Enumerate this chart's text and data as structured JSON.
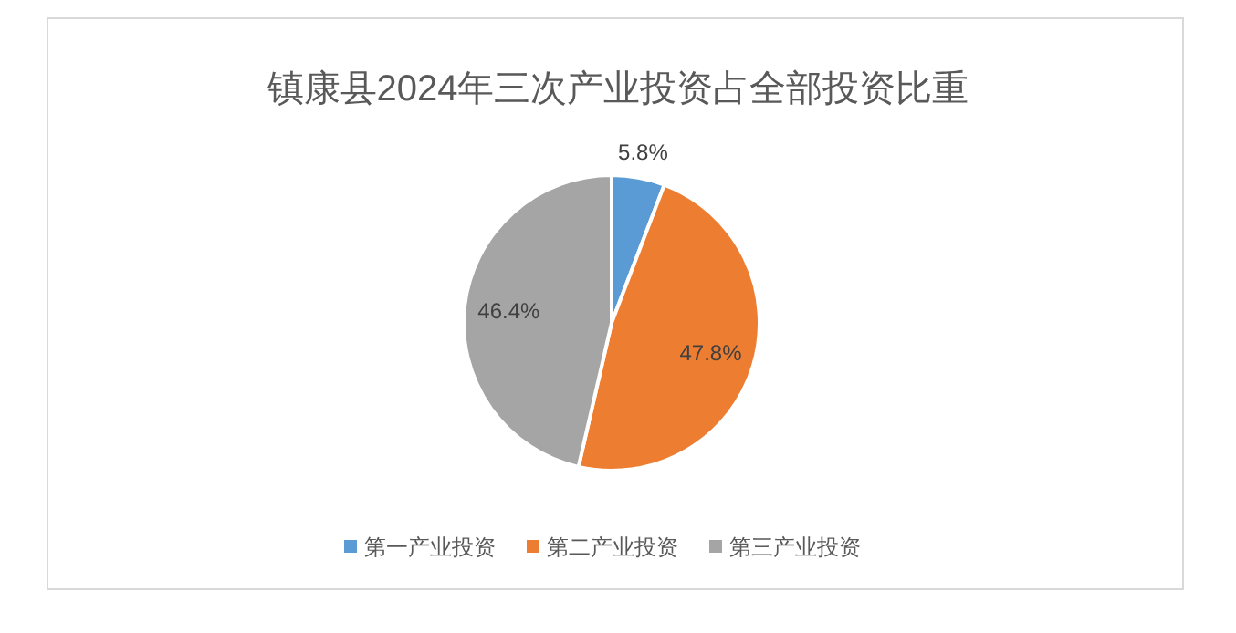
{
  "chart_data": {
    "type": "pie",
    "title": "镇康县2024年三次产业投资占全部投资比重",
    "categories": [
      "第一产业投资",
      "第二产业投资",
      "第三产业投资"
    ],
    "values": [
      5.8,
      47.8,
      46.4
    ],
    "value_labels": [
      "5.8%",
      "47.8%",
      "46.4%"
    ],
    "colors": [
      "#5b9bd5",
      "#ed7d31",
      "#a5a5a5"
    ],
    "legend": "bottom"
  }
}
